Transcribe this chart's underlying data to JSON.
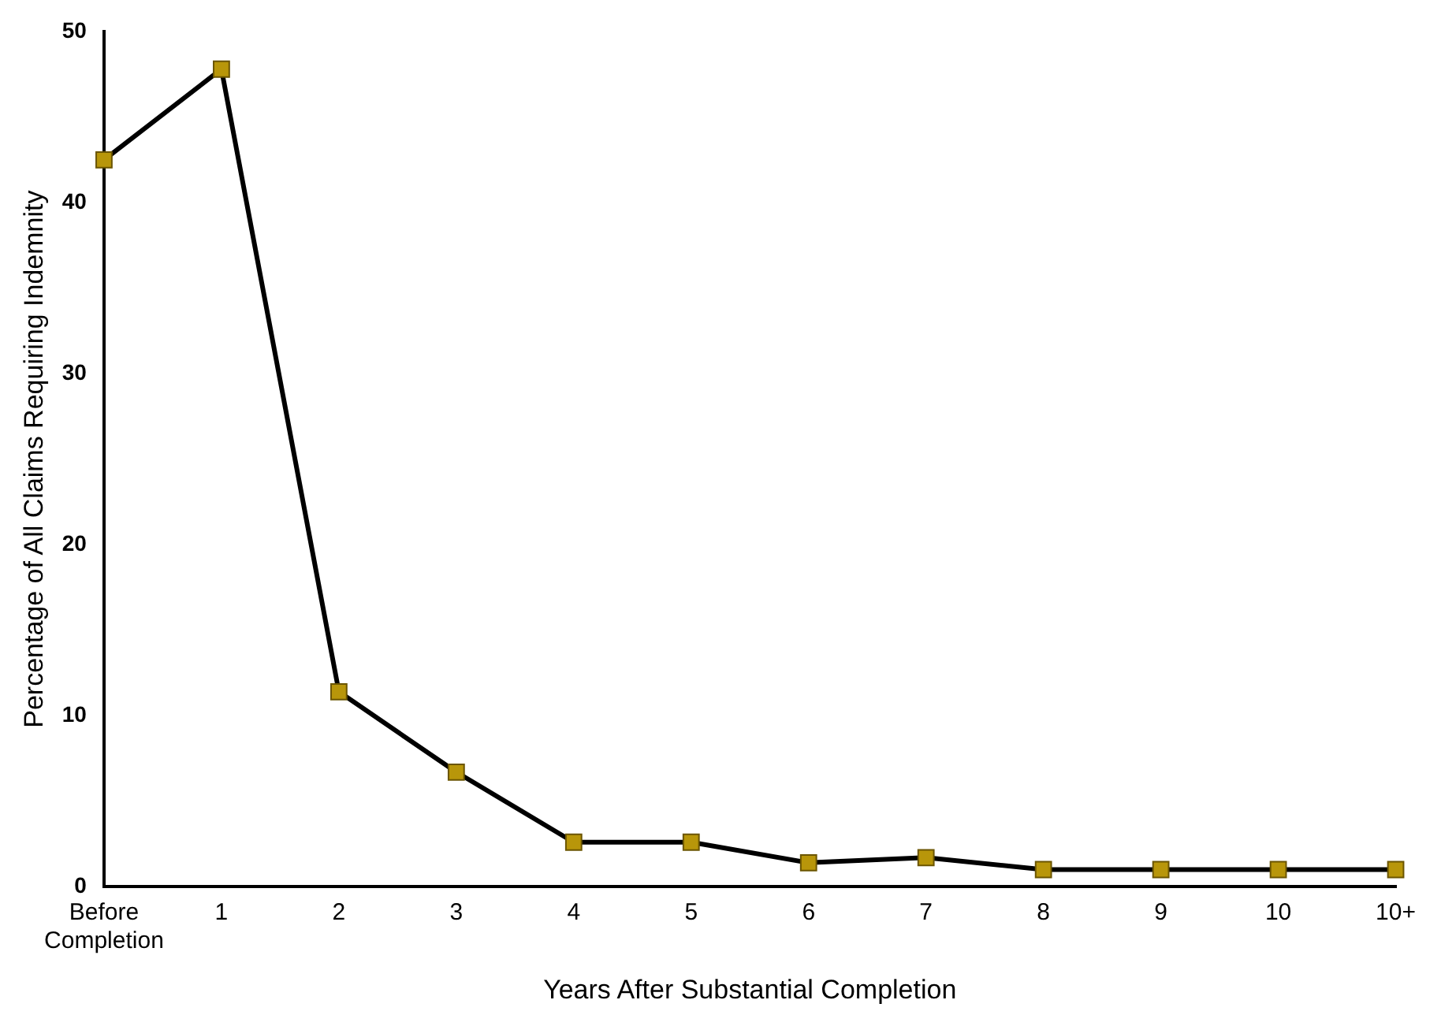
{
  "chart_data": {
    "type": "line",
    "xlabel": "Years After Substantial Completion",
    "ylabel": "Percentage of All Claims Requiring Indemnity",
    "categories": [
      "Before Completion",
      "1",
      "2",
      "3",
      "4",
      "5",
      "6",
      "7",
      "8",
      "9",
      "10",
      "10+"
    ],
    "series": [
      {
        "color": "#b8960a",
        "values": [
          42.5,
          47.8,
          11.4,
          6.7,
          2.6,
          2.6,
          1.4,
          1.7,
          1.0,
          1.0,
          1.0,
          1.0
        ]
      }
    ],
    "ylim": [
      0,
      50
    ],
    "yticks": [
      0,
      10,
      20,
      30,
      40,
      50
    ],
    "grid": false,
    "legend": false,
    "marker": "square",
    "line_style": "solid"
  }
}
